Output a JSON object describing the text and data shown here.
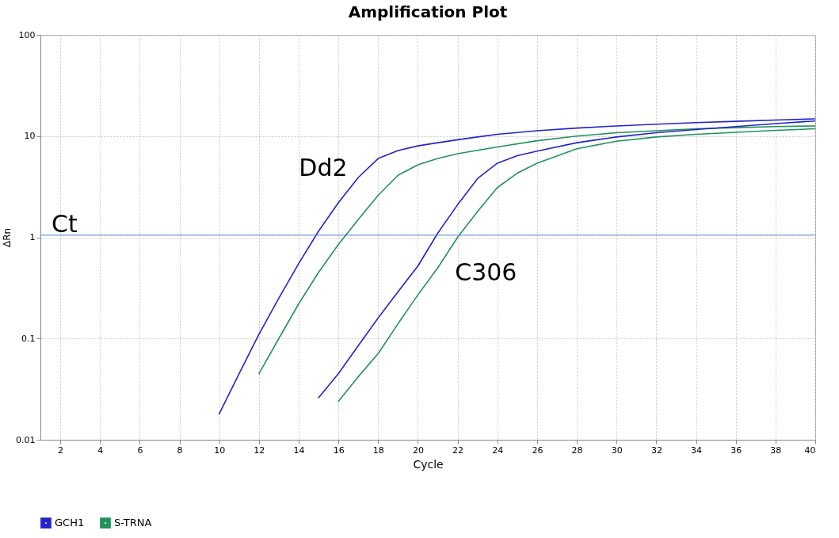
{
  "chart_data": {
    "type": "line",
    "title": "Amplification Plot",
    "xlabel": "Cycle",
    "ylabel": "ΔRn",
    "series": [
      {
        "name": "GCH1",
        "color": "#2424c8",
        "x": [
          10,
          11,
          12,
          13,
          14,
          15,
          16,
          17,
          18,
          19,
          20,
          21,
          22,
          23,
          24,
          26,
          28,
          30,
          32,
          34,
          36,
          38,
          40
        ],
        "values": [
          0.018,
          0.045,
          0.11,
          0.25,
          0.55,
          1.15,
          2.2,
          3.9,
          6.0,
          7.2,
          8.0,
          8.6,
          9.2,
          9.8,
          10.4,
          11.3,
          12,
          12.6,
          13.1,
          13.6,
          14,
          14.4,
          14.8
        ]
      },
      {
        "name": "S-TRNA",
        "color": "#23925a",
        "x": [
          12,
          13,
          14,
          15,
          16,
          17,
          18,
          19,
          20,
          21,
          22,
          24,
          26,
          28,
          30,
          32,
          34,
          36,
          38,
          40
        ],
        "values": [
          0.045,
          0.1,
          0.22,
          0.45,
          0.85,
          1.5,
          2.6,
          4.1,
          5.2,
          6.0,
          6.7,
          7.8,
          9.0,
          10,
          10.8,
          11.3,
          11.8,
          12.1,
          12.4,
          12.6
        ]
      },
      {
        "color": "#2424c8",
        "x": [
          15,
          16,
          17,
          18,
          19,
          20,
          21,
          22,
          23,
          24,
          25,
          26,
          28,
          30,
          32,
          34,
          36,
          38,
          40
        ],
        "values": [
          0.026,
          0.045,
          0.085,
          0.16,
          0.29,
          0.52,
          1.1,
          2.1,
          3.8,
          5.4,
          6.4,
          7.1,
          8.6,
          9.8,
          10.8,
          11.6,
          12.4,
          13.3,
          14.1
        ]
      },
      {
        "color": "#23925a",
        "x": [
          16,
          17,
          18,
          19,
          20,
          21,
          22,
          23,
          24,
          25,
          26,
          28,
          30,
          32,
          34,
          36,
          38,
          40
        ],
        "values": [
          0.024,
          0.042,
          0.071,
          0.14,
          0.27,
          0.5,
          1.0,
          1.8,
          3.1,
          4.3,
          5.4,
          7.5,
          8.9,
          9.8,
          10.4,
          10.9,
          11.4,
          11.8
        ]
      }
    ],
    "xlim": [
      1,
      40
    ],
    "xticks": [
      2,
      4,
      6,
      8,
      10,
      12,
      14,
      16,
      18,
      20,
      22,
      24,
      26,
      28,
      30,
      32,
      34,
      36,
      38,
      40
    ],
    "ylim": [
      0.01,
      100
    ],
    "yticks": [
      0.01,
      0.1,
      1,
      10,
      100
    ],
    "log": true,
    "grid": true,
    "ref_lines": [
      {
        "axis": "y",
        "value": 1.05,
        "label": "Ct",
        "color": "#4a7fc1"
      }
    ],
    "annotations": [
      "Dd2",
      "C306"
    ],
    "legend": "bottom left",
    "marker": "none",
    "line_style": "solid"
  }
}
